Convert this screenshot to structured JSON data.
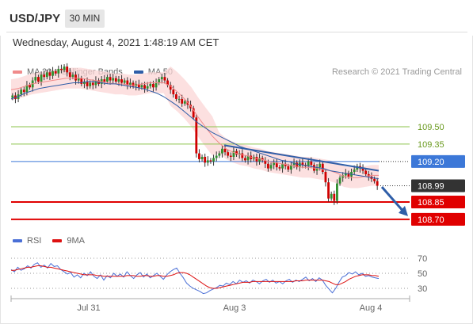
{
  "header": {
    "symbol": "USD/JPY",
    "timeframe": "30 MIN",
    "timestamp": "Wednesday, August 4, 2021 1:48:19 AM CET"
  },
  "legend": {
    "items": [
      {
        "label": "MA 20 + Bollinger Bands",
        "color": "#f08a8a"
      },
      {
        "label": "MA 50",
        "color": "#2f5ea8"
      }
    ],
    "credit": "Research © 2021 Trading Central"
  },
  "rsi_legend": {
    "items": [
      {
        "label": "RSI",
        "color": "#4a6fd6"
      },
      {
        "label": "9MA",
        "color": "#dd1111"
      }
    ]
  },
  "chart_data": [
    {
      "type": "line",
      "title": "",
      "y_range": [
        108.62,
        110.0
      ],
      "x_labels": [
        "Jul 31",
        "Aug 3",
        "Aug 4"
      ],
      "price_levels": [
        {
          "label": "109.50",
          "value": 109.5,
          "color": "#8bc34a",
          "style": "thin-green"
        },
        {
          "label": "109.35",
          "value": 109.35,
          "color": "#8bc34a",
          "style": "thin-green"
        },
        {
          "label": "109.20",
          "value": 109.2,
          "color": "#3c78d8",
          "style": "blue-badge"
        },
        {
          "label": "108.99",
          "value": 108.99,
          "color": "#333333",
          "style": "dark-badge"
        },
        {
          "label": "108.85",
          "value": 108.85,
          "color": "#e00000",
          "style": "red-badge"
        },
        {
          "label": "108.70",
          "value": 108.7,
          "color": "#e00000",
          "style": "red-badge"
        }
      ],
      "close_series": [
        109.77,
        109.74,
        109.78,
        109.82,
        109.8,
        109.86,
        109.84,
        109.9,
        109.93,
        109.89,
        109.95,
        109.93,
        109.97,
        109.94,
        109.98,
        109.96,
        110.0,
        109.99,
        110.02,
        109.97,
        109.93,
        109.95,
        109.9,
        109.92,
        109.87,
        109.89,
        109.85,
        109.88,
        109.86,
        109.9,
        109.87,
        109.91,
        109.89,
        109.93,
        109.9,
        109.92,
        109.89,
        109.91,
        109.88,
        109.9,
        109.86,
        109.88,
        109.85,
        109.87,
        109.84,
        109.86,
        109.83,
        109.85,
        109.87,
        109.84,
        109.88,
        109.91,
        109.93,
        109.9,
        109.86,
        109.82,
        109.78,
        109.74,
        109.74,
        109.7,
        109.72,
        109.69,
        109.66,
        109.58,
        109.27,
        109.22,
        109.24,
        109.19,
        109.21,
        109.2,
        109.23,
        109.25,
        109.27,
        109.31,
        109.28,
        109.25,
        109.24,
        109.29,
        109.26,
        109.27,
        109.23,
        109.21,
        109.25,
        109.22,
        109.24,
        109.2,
        109.23,
        109.21,
        109.18,
        109.14,
        109.17,
        109.19,
        109.15,
        109.14,
        109.18,
        109.16,
        109.13,
        109.17,
        109.19,
        109.15,
        109.19,
        109.17,
        109.16,
        109.2,
        109.17,
        109.12,
        109.15,
        109.18,
        109.11,
        109.02,
        108.88,
        108.92,
        108.86,
        109.01,
        109.06,
        109.08,
        109.1,
        109.07,
        109.11,
        109.13,
        109.16,
        109.14,
        109.12,
        109.09,
        109.07,
        109.05,
        109.03,
        108.99
      ],
      "ma_series": {
        "ma20": [
          109.82,
          109.83,
          109.85,
          109.87,
          109.88,
          109.89,
          109.9,
          109.91,
          109.92,
          109.92,
          109.92,
          109.91,
          109.9,
          109.89,
          109.88,
          109.87,
          109.87,
          109.86,
          109.86,
          109.87,
          109.88,
          109.88,
          109.88,
          109.85,
          109.8,
          109.74,
          109.67,
          109.58,
          109.5,
          109.42,
          109.36,
          109.31,
          109.28,
          109.26,
          109.25,
          109.23,
          109.22,
          109.2,
          109.19,
          109.18,
          109.17,
          109.16,
          109.15,
          109.15,
          109.14,
          109.13,
          109.12,
          109.1,
          109.07,
          109.06,
          109.06,
          109.07,
          109.08,
          109.08
        ],
        "ma50": [
          109.74,
          109.76,
          109.79,
          109.81,
          109.83,
          109.84,
          109.85,
          109.86,
          109.87,
          109.88,
          109.88,
          109.89,
          109.89,
          109.88,
          109.87,
          109.87,
          109.86,
          109.85,
          109.84,
          109.83,
          109.81,
          109.79,
          109.76,
          109.72,
          109.68,
          109.63,
          109.58,
          109.53,
          109.49,
          109.45,
          109.42,
          109.39,
          109.36,
          109.33,
          109.31,
          109.29,
          109.27,
          109.25,
          109.23,
          109.21,
          109.2,
          109.18,
          109.17,
          109.16,
          109.15,
          109.14,
          109.12,
          109.11,
          109.1,
          109.09,
          109.08,
          109.07,
          109.06,
          109.05
        ]
      },
      "trendline": {
        "from": 109.34,
        "to": 109.12
      },
      "projection": {
        "from": 108.98,
        "to": 108.7
      }
    },
    {
      "type": "line",
      "title": "RSI",
      "y_ticks": [
        "70",
        "50",
        "30"
      ],
      "series": [
        {
          "name": "RSI",
          "values": [
            55,
            52,
            58,
            54,
            56,
            60,
            57,
            62,
            64,
            58,
            61,
            57,
            63,
            59,
            60,
            55,
            52,
            49,
            51,
            45,
            48,
            44,
            50,
            47,
            52,
            46,
            43,
            48,
            41,
            47,
            44,
            50,
            46,
            49,
            45,
            52,
            47,
            43,
            48,
            51,
            45,
            49,
            44,
            47,
            50,
            46,
            42,
            48,
            52,
            55,
            57,
            50,
            44,
            37,
            33,
            30,
            28,
            26,
            23,
            24,
            27,
            29,
            31,
            34,
            33,
            37,
            35,
            39,
            36,
            41,
            38,
            40,
            37,
            41,
            39,
            36,
            40,
            42,
            38,
            41,
            37,
            39,
            36,
            40,
            42,
            38,
            41,
            39,
            42,
            45,
            40,
            43,
            39,
            44,
            41,
            34,
            29,
            24,
            30,
            38,
            45,
            47,
            51,
            49,
            52,
            48,
            50,
            46,
            47,
            45,
            44,
            43
          ]
        },
        {
          "name": "9MA",
          "values": [
            54,
            54,
            55,
            56,
            57,
            58,
            58,
            59,
            60,
            60,
            59,
            58,
            58,
            57,
            56,
            55,
            54,
            53,
            52,
            51,
            50,
            49,
            48,
            48,
            48,
            48,
            47,
            47,
            46,
            46,
            46,
            46,
            46,
            46,
            46,
            47,
            47,
            47,
            46,
            46,
            47,
            47,
            46,
            46,
            47,
            47,
            46,
            46,
            47,
            48,
            50,
            51,
            51,
            50,
            48,
            45,
            42,
            39,
            36,
            33,
            31,
            30,
            30,
            31,
            32,
            33,
            34,
            35,
            36,
            37,
            38,
            38,
            38,
            39,
            39,
            39,
            39,
            39,
            39,
            39,
            39,
            39,
            39,
            39,
            39,
            39,
            40,
            40,
            40,
            41,
            41,
            41,
            41,
            41,
            41,
            40,
            39,
            37,
            35,
            35,
            37,
            39,
            42,
            44,
            46,
            47,
            48,
            48,
            48,
            47,
            47,
            46
          ]
        }
      ]
    }
  ]
}
